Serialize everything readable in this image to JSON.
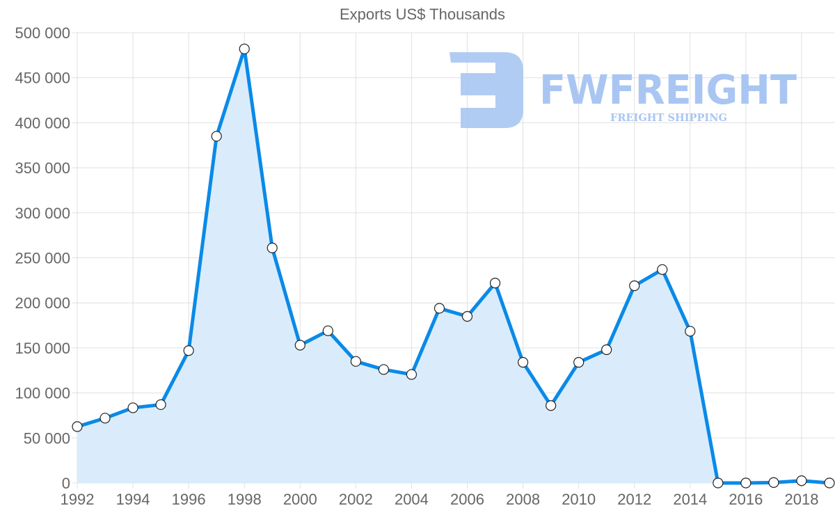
{
  "chart_data": {
    "type": "area",
    "title": "Exports US$ Thousands",
    "xlabel": "",
    "ylabel": "",
    "x": [
      1992,
      1993,
      1994,
      1995,
      1996,
      1997,
      1998,
      1999,
      2000,
      2001,
      2002,
      2003,
      2004,
      2005,
      2006,
      2007,
      2008,
      2009,
      2010,
      2011,
      2012,
      2013,
      2014,
      2015,
      2016,
      2017,
      2018,
      2019
    ],
    "series": [
      {
        "name": "Exports",
        "values": [
          62600,
          72000,
          83500,
          87000,
          147000,
          385000,
          482000,
          261000,
          153000,
          169000,
          135000,
          126000,
          120500,
          194000,
          185000,
          222000,
          134000,
          86000,
          134000,
          148000,
          219000,
          237000,
          168500,
          0,
          0,
          500,
          2500,
          0
        ]
      }
    ],
    "ylim": [
      0,
      500000
    ],
    "y_ticks": [
      "0",
      "50 000",
      "100 000",
      "150 000",
      "200 000",
      "250 000",
      "300 000",
      "350 000",
      "400 000",
      "450 000",
      "500 000"
    ],
    "x_ticks": [
      "1992",
      "1994",
      "1996",
      "1998",
      "2000",
      "2002",
      "2004",
      "2006",
      "2008",
      "2010",
      "2012",
      "2014",
      "2016",
      "2018"
    ],
    "grid": true,
    "legend": "none",
    "colors": {
      "line": "#0a8ae8",
      "fill": "#d8ebfb",
      "point_fill": "#ffffff",
      "point_stroke": "#222222",
      "grid": "#e0e0e0"
    }
  },
  "watermark": {
    "brand": "FWFREIGHT",
    "tagline": "FREIGHT SHIPPING",
    "color": "#a9c6f2"
  }
}
